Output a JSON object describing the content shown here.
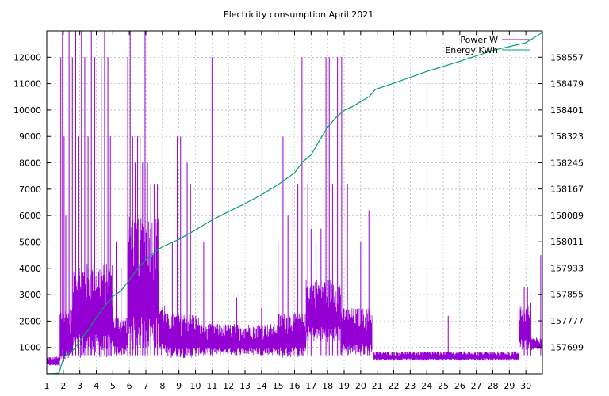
{
  "chart_data": {
    "type": "line",
    "title": "Electricity consumption April 2021",
    "xlabel": "",
    "ylabel": "",
    "y2label": "",
    "grid": true,
    "legend_position": "top-right",
    "xlim": [
      1,
      31
    ],
    "ylim": [
      0,
      13000
    ],
    "y2lim": [
      157620,
      158635
    ],
    "x_ticks": [
      1,
      2,
      3,
      4,
      5,
      6,
      7,
      8,
      9,
      10,
      11,
      12,
      13,
      14,
      15,
      16,
      17,
      18,
      19,
      20,
      21,
      22,
      23,
      24,
      25,
      26,
      27,
      28,
      29,
      30
    ],
    "y_ticks": [
      1000,
      2000,
      3000,
      4000,
      5000,
      6000,
      7000,
      8000,
      9000,
      10000,
      11000,
      12000
    ],
    "y2_ticks": [
      157699,
      157777,
      157855,
      157933,
      158011,
      158089,
      158167,
      158245,
      158323,
      158401,
      158479,
      158557
    ],
    "series": [
      {
        "name": "Power W",
        "axis": "y1",
        "color": "#9400d3",
        "bands": [
          {
            "x": [
              1.0,
              1.8
            ],
            "low": 300,
            "high": 650
          },
          {
            "x": [
              1.8,
              2.6
            ],
            "low": 450,
            "high": 2500
          },
          {
            "x": [
              2.6,
              5.0
            ],
            "low": 600,
            "high": 4200
          },
          {
            "x": [
              5.0,
              5.9
            ],
            "low": 700,
            "high": 2200
          },
          {
            "x": [
              5.9,
              7.8
            ],
            "low": 900,
            "high": 6000
          },
          {
            "x": [
              7.8,
              8.2
            ],
            "low": 700,
            "high": 2700
          },
          {
            "x": [
              8.2,
              10.2
            ],
            "low": 600,
            "high": 2300
          },
          {
            "x": [
              10.2,
              15.0
            ],
            "low": 700,
            "high": 1900
          },
          {
            "x": [
              15.0,
              16.7
            ],
            "low": 600,
            "high": 2300
          },
          {
            "x": [
              16.7,
              18.8
            ],
            "low": 1200,
            "high": 3600
          },
          {
            "x": [
              18.8,
              20.7
            ],
            "low": 700,
            "high": 2500
          },
          {
            "x": [
              20.8,
              29.6
            ],
            "low": 500,
            "high": 850
          },
          {
            "x": [
              29.6,
              30.3
            ],
            "low": 900,
            "high": 2600
          },
          {
            "x": [
              30.3,
              31.0
            ],
            "low": 900,
            "high": 1400
          }
        ],
        "spikes": [
          {
            "x": 1.85,
            "y": 12000
          },
          {
            "x": 1.95,
            "y": 13000
          },
          {
            "x": 2.05,
            "y": 9000
          },
          {
            "x": 2.15,
            "y": 6000
          },
          {
            "x": 2.35,
            "y": 13000
          },
          {
            "x": 2.55,
            "y": 12000
          },
          {
            "x": 2.75,
            "y": 13000
          },
          {
            "x": 2.9,
            "y": 9000
          },
          {
            "x": 3.1,
            "y": 13000
          },
          {
            "x": 3.3,
            "y": 12000
          },
          {
            "x": 3.5,
            "y": 9000
          },
          {
            "x": 3.7,
            "y": 13000
          },
          {
            "x": 3.9,
            "y": 12000
          },
          {
            "x": 4.1,
            "y": 9000
          },
          {
            "x": 4.3,
            "y": 12000
          },
          {
            "x": 4.5,
            "y": 13000
          },
          {
            "x": 4.7,
            "y": 12000
          },
          {
            "x": 4.85,
            "y": 9000
          },
          {
            "x": 5.2,
            "y": 5000
          },
          {
            "x": 5.5,
            "y": 4000
          },
          {
            "x": 5.9,
            "y": 12000
          },
          {
            "x": 6.05,
            "y": 13000
          },
          {
            "x": 6.2,
            "y": 9000
          },
          {
            "x": 6.35,
            "y": 8000
          },
          {
            "x": 6.5,
            "y": 9000
          },
          {
            "x": 6.65,
            "y": 9000
          },
          {
            "x": 6.8,
            "y": 8000
          },
          {
            "x": 6.95,
            "y": 13000
          },
          {
            "x": 7.1,
            "y": 8000
          },
          {
            "x": 7.3,
            "y": 7200
          },
          {
            "x": 7.5,
            "y": 7200
          },
          {
            "x": 7.7,
            "y": 7200
          },
          {
            "x": 8.6,
            "y": 5000
          },
          {
            "x": 8.9,
            "y": 9000
          },
          {
            "x": 9.1,
            "y": 9000
          },
          {
            "x": 9.5,
            "y": 8000
          },
          {
            "x": 9.7,
            "y": 7200
          },
          {
            "x": 10.5,
            "y": 5000
          },
          {
            "x": 11.0,
            "y": 12000
          },
          {
            "x": 12.5,
            "y": 2900
          },
          {
            "x": 14.0,
            "y": 2500
          },
          {
            "x": 15.0,
            "y": 5000
          },
          {
            "x": 15.3,
            "y": 9000
          },
          {
            "x": 15.6,
            "y": 6000
          },
          {
            "x": 15.9,
            "y": 7200
          },
          {
            "x": 16.2,
            "y": 7200
          },
          {
            "x": 16.45,
            "y": 12000
          },
          {
            "x": 16.8,
            "y": 7200
          },
          {
            "x": 17.0,
            "y": 5500
          },
          {
            "x": 17.3,
            "y": 5000
          },
          {
            "x": 17.6,
            "y": 5500
          },
          {
            "x": 17.9,
            "y": 12000
          },
          {
            "x": 18.1,
            "y": 12000
          },
          {
            "x": 18.3,
            "y": 7200
          },
          {
            "x": 18.6,
            "y": 12000
          },
          {
            "x": 18.85,
            "y": 12000
          },
          {
            "x": 19.2,
            "y": 7200
          },
          {
            "x": 19.6,
            "y": 5500
          },
          {
            "x": 20.0,
            "y": 5000
          },
          {
            "x": 20.5,
            "y": 6200
          },
          {
            "x": 25.3,
            "y": 2200
          },
          {
            "x": 29.9,
            "y": 3300
          },
          {
            "x": 30.1,
            "y": 3300
          },
          {
            "x": 30.3,
            "y": 2700
          },
          {
            "x": 30.9,
            "y": 4500
          }
        ]
      },
      {
        "name": "Energy KWh",
        "axis": "y2",
        "color": "#009e73",
        "points": [
          [
            1.0,
            157620
          ],
          [
            1.5,
            157621
          ],
          [
            1.75,
            157622
          ],
          [
            1.9,
            157650
          ],
          [
            2.1,
            157672
          ],
          [
            2.6,
            157690
          ],
          [
            3.0,
            157718
          ],
          [
            3.5,
            157749
          ],
          [
            4.0,
            157787
          ],
          [
            4.5,
            157820
          ],
          [
            5.0,
            157848
          ],
          [
            5.5,
            157866
          ],
          [
            6.0,
            157898
          ],
          [
            6.5,
            157931
          ],
          [
            7.0,
            157957
          ],
          [
            7.5,
            157980
          ],
          [
            8.0,
            157996
          ],
          [
            9.0,
            158018
          ],
          [
            10.0,
            158046
          ],
          [
            11.0,
            158075
          ],
          [
            12.0,
            158100
          ],
          [
            13.0,
            158124
          ],
          [
            14.0,
            158150
          ],
          [
            15.0,
            158180
          ],
          [
            16.0,
            158215
          ],
          [
            16.5,
            158248
          ],
          [
            17.0,
            158268
          ],
          [
            17.5,
            158310
          ],
          [
            18.0,
            158350
          ],
          [
            18.5,
            158378
          ],
          [
            19.0,
            158400
          ],
          [
            19.5,
            158411
          ],
          [
            20.0,
            158426
          ],
          [
            20.5,
            158440
          ],
          [
            20.9,
            158462
          ],
          [
            22.0,
            158480
          ],
          [
            24.0,
            158515
          ],
          [
            26.0,
            158545
          ],
          [
            28.0,
            158577
          ],
          [
            30.0,
            158600
          ],
          [
            31.0,
            158630
          ]
        ]
      }
    ]
  }
}
